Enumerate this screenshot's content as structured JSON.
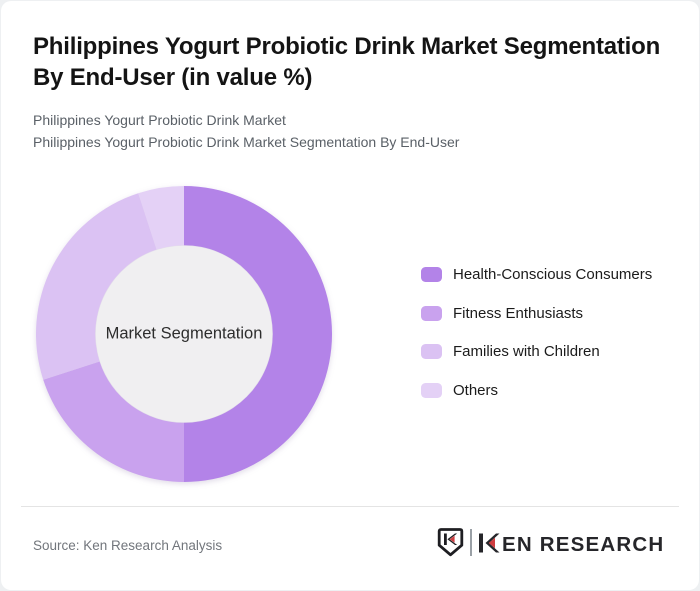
{
  "header": {
    "title": "Philippines Yogurt Probiotic Drink Market Segmentation By End-User (in value %)",
    "subtitle_line1": "Philippines Yogurt Probiotic Drink Market",
    "subtitle_line2": "Philippines Yogurt Probiotic Drink Market Segmentation By End-User"
  },
  "chart_data": {
    "type": "pie",
    "subtype": "donut",
    "title": "Philippines Yogurt Probiotic Drink Market Segmentation By End-User (in value %)",
    "center_label": "Market Segmentation",
    "categories": [
      "Health-Conscious Consumers",
      "Fitness Enthusiasts",
      "Families with Children",
      "Others"
    ],
    "values": [
      50,
      20,
      25,
      5
    ],
    "unit": "value %",
    "colors": [
      "#b383e8",
      "#c9a2ee",
      "#dbc2f3",
      "#e4d1f6"
    ],
    "start_angle_deg": 0,
    "direction": "clockwise",
    "inner_radius_ratio": 0.6,
    "center_fill": "#f0eff1",
    "legend_position": "right",
    "grid": false
  },
  "footer": {
    "source": "Source: Ken Research Analysis",
    "brand": "KEN RESEARCH",
    "brand_wordmark_rest": "EN RESEARCH",
    "brand_dark_color": "#26262a",
    "brand_red_color": "#cf3d40"
  }
}
